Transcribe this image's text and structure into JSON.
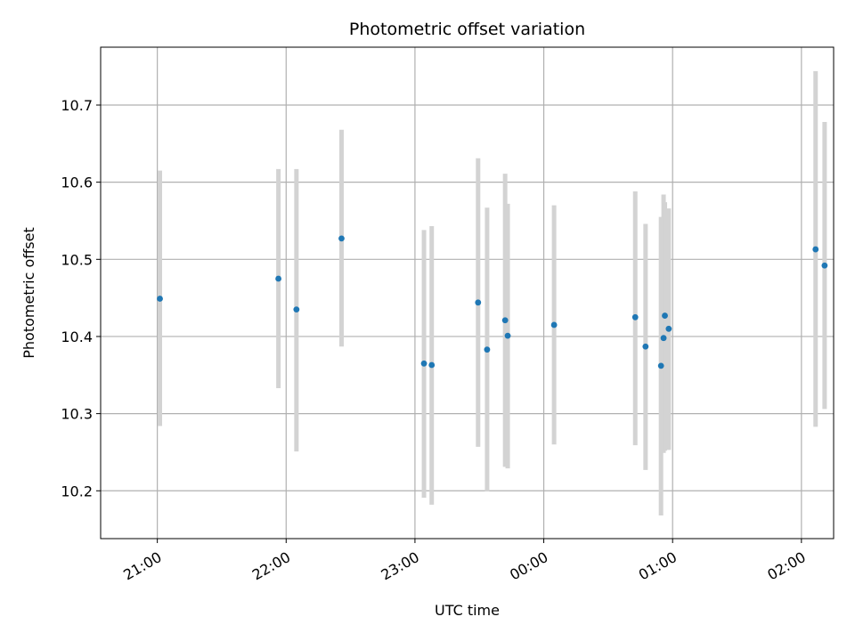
{
  "chart_data": {
    "type": "scatter",
    "title": "Photometric offset variation",
    "xlabel": "UTC time",
    "ylabel": "Photometric offset",
    "x_axis": {
      "unit": "hours",
      "range": [
        20.56,
        26.25
      ],
      "ticks": [
        {
          "value": 21,
          "label": "21:00"
        },
        {
          "value": 22,
          "label": "22:00"
        },
        {
          "value": 23,
          "label": "23:00"
        },
        {
          "value": 24,
          "label": "00:00"
        },
        {
          "value": 25,
          "label": "01:00"
        },
        {
          "value": 26,
          "label": "02:00"
        }
      ]
    },
    "y_axis": {
      "range": [
        10.138,
        10.775
      ],
      "ticks": [
        10.2,
        10.3,
        10.4,
        10.5,
        10.6,
        10.7
      ]
    },
    "grid": true,
    "colors": {
      "point": "#1f77b4",
      "error_bar": "#d3d3d3",
      "grid": "#b0b0b0",
      "axes": "#000000"
    },
    "points": [
      {
        "x": 21.02,
        "y": 10.449,
        "low": 10.284,
        "high": 10.615
      },
      {
        "x": 21.94,
        "y": 10.475,
        "low": 10.333,
        "high": 10.617
      },
      {
        "x": 22.08,
        "y": 10.435,
        "low": 10.251,
        "high": 10.617
      },
      {
        "x": 22.43,
        "y": 10.527,
        "low": 10.387,
        "high": 10.668
      },
      {
        "x": 23.07,
        "y": 10.365,
        "low": 10.191,
        "high": 10.538
      },
      {
        "x": 23.13,
        "y": 10.363,
        "low": 10.182,
        "high": 10.543
      },
      {
        "x": 23.49,
        "y": 10.444,
        "low": 10.257,
        "high": 10.631
      },
      {
        "x": 23.56,
        "y": 10.383,
        "low": 10.199,
        "high": 10.567
      },
      {
        "x": 23.7,
        "y": 10.421,
        "low": 10.231,
        "high": 10.611
      },
      {
        "x": 23.72,
        "y": 10.401,
        "low": 10.229,
        "high": 10.572
      },
      {
        "x": 24.08,
        "y": 10.415,
        "low": 10.26,
        "high": 10.57
      },
      {
        "x": 24.71,
        "y": 10.425,
        "low": 10.259,
        "high": 10.588
      },
      {
        "x": 24.79,
        "y": 10.387,
        "low": 10.227,
        "high": 10.546
      },
      {
        "x": 24.91,
        "y": 10.362,
        "low": 10.168,
        "high": 10.555
      },
      {
        "x": 24.93,
        "y": 10.398,
        "low": 10.249,
        "high": 10.584
      },
      {
        "x": 24.94,
        "y": 10.427,
        "low": 10.252,
        "high": 10.574
      },
      {
        "x": 24.97,
        "y": 10.41,
        "low": 10.253,
        "high": 10.566
      },
      {
        "x": 26.11,
        "y": 10.513,
        "low": 10.283,
        "high": 10.744
      },
      {
        "x": 26.18,
        "y": 10.492,
        "low": 10.306,
        "high": 10.678
      }
    ]
  }
}
